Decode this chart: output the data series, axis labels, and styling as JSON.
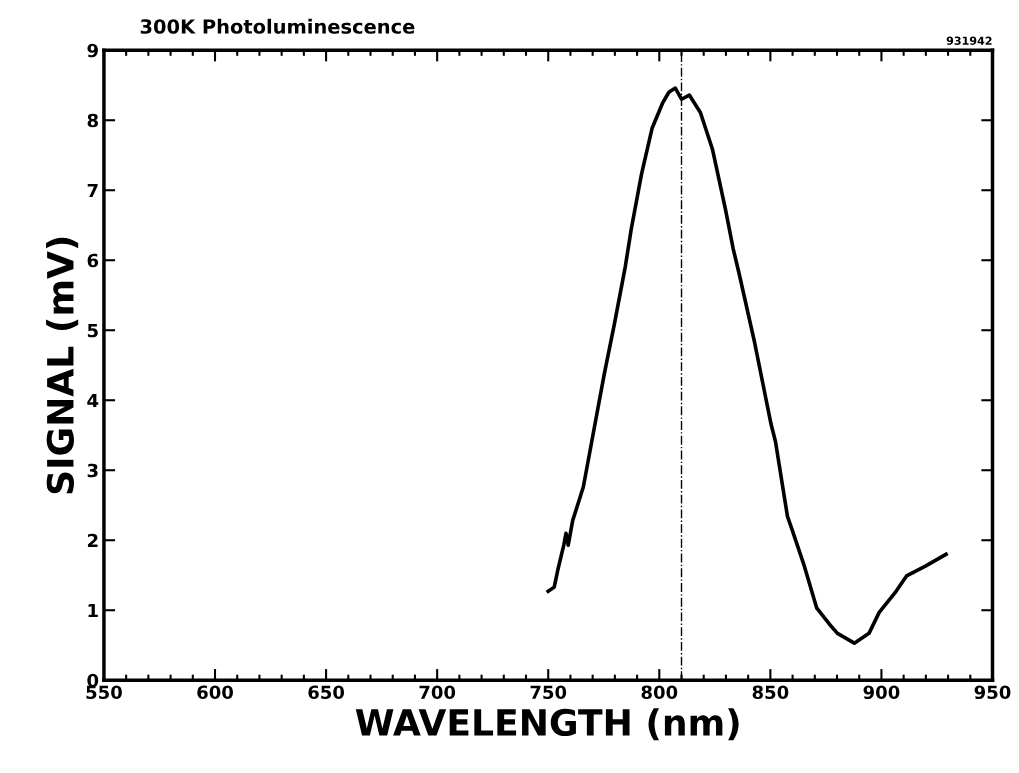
{
  "chart_data": {
    "type": "line",
    "title": "300K Photoluminescence",
    "xlabel": "WAVELENGTH (nm)",
    "ylabel": "SIGNAL (mV)",
    "annotations": [
      "931942"
    ],
    "series": [
      {
        "color": "#000000",
        "x": [
          750,
          752.7,
          754.5,
          757,
          758,
          759,
          761,
          765.8,
          769.6,
          775.2,
          779.8,
          784.7,
          787.4,
          792,
          796.8,
          801.4,
          804.3,
          807.2,
          810,
          813.5,
          818.5,
          823.9,
          829.7,
          833.3,
          836,
          842.8,
          850.3,
          852.3,
          857.7,
          859.7,
          865.3,
          870.9,
          876.6,
          880.2,
          887.8,
          894.4,
          899,
          906.6,
          911.3,
          919.8,
          929.1
        ],
        "values": [
          1.27,
          1.33,
          1.6,
          1.93,
          2.1,
          1.93,
          2.28,
          2.76,
          3.41,
          4.37,
          5.09,
          5.91,
          6.45,
          7.23,
          7.89,
          8.24,
          8.4,
          8.46,
          8.3,
          8.36,
          8.11,
          7.59,
          6.74,
          6.16,
          5.8,
          4.84,
          3.66,
          3.41,
          2.34,
          2.16,
          1.63,
          1.03,
          0.8,
          0.67,
          0.53,
          0.67,
          0.97,
          1.27,
          1.49,
          1.63,
          1.8
        ]
      }
    ],
    "ref_lines": [
      {
        "axis": "x",
        "value": 810,
        "color": "#000000",
        "line_style": "dashed"
      }
    ],
    "xlim": [
      550,
      950
    ],
    "ylim": [
      0,
      9
    ],
    "xticks": [
      550,
      600,
      650,
      700,
      750,
      800,
      850,
      900,
      950
    ],
    "yticks": [
      0,
      1,
      2,
      3,
      4,
      5,
      6,
      7,
      8,
      9
    ],
    "grid": false,
    "legend": false,
    "marker": "none",
    "line_style": "solid"
  }
}
